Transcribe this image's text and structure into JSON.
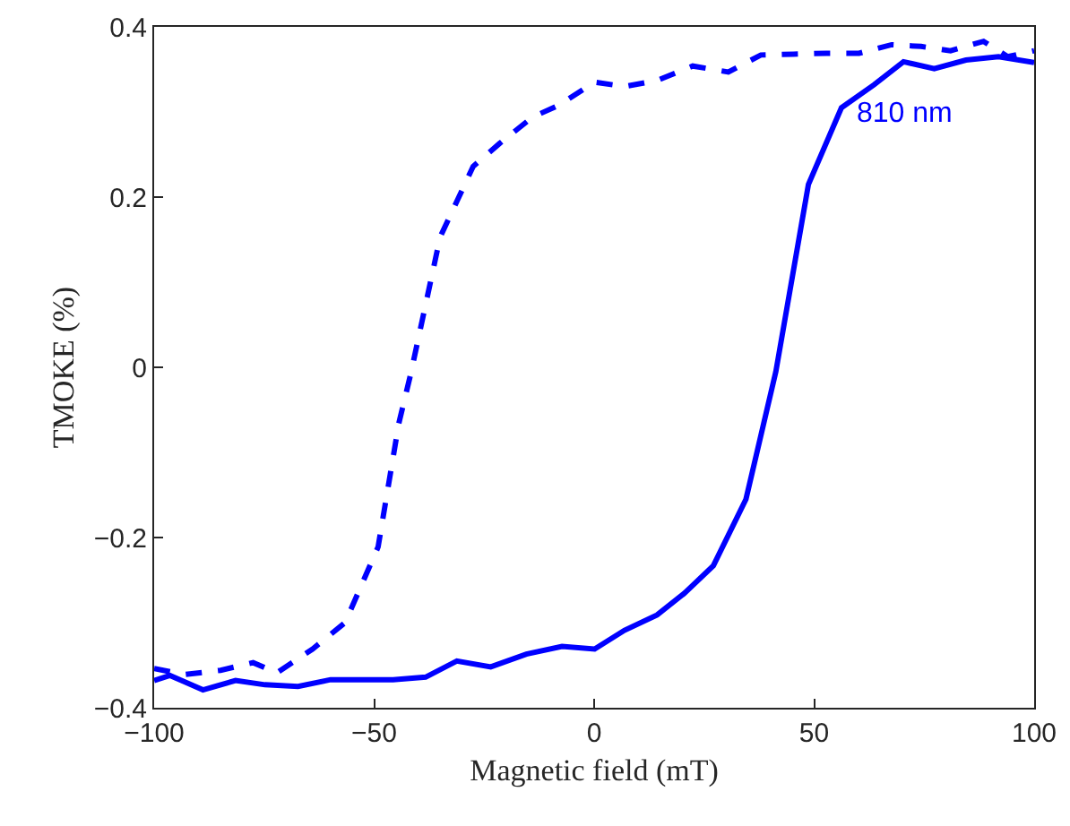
{
  "chart_data": {
    "type": "line",
    "xlabel": "Magnetic field (mT)",
    "ylabel": "TMOKE (%)",
    "xlim": [
      -100,
      100
    ],
    "xticks": [
      -100,
      -50,
      0,
      50,
      100
    ],
    "ylim": [
      -0.4,
      0.4
    ],
    "yticks": [
      -0.4,
      -0.2,
      0,
      0.2,
      0.4
    ],
    "annotations": [
      "810 nm"
    ],
    "series": [
      {
        "color": "#0000ff",
        "line_style": "solid",
        "x": [
          -100,
          -96.4,
          -88.9,
          -81.5,
          -74.8,
          -67.3,
          -59.9,
          -53.2,
          -45.7,
          -38.3,
          -31.2,
          -23.5,
          -15.4,
          -7.3,
          0.1,
          6.9,
          14.3,
          20.4,
          27.1,
          34.5,
          41.3,
          48.7,
          56.2,
          63.6,
          70.3,
          77.3,
          84.5,
          91.9,
          100
        ],
        "values": [
          -0.368,
          -0.362,
          -0.379,
          -0.368,
          -0.373,
          -0.375,
          -0.367,
          -0.367,
          -0.367,
          -0.364,
          -0.345,
          -0.352,
          -0.337,
          -0.328,
          -0.331,
          -0.309,
          -0.291,
          -0.266,
          -0.233,
          -0.155,
          -0.005,
          0.215,
          0.305,
          0.332,
          0.359,
          0.351,
          0.361,
          0.365,
          0.358
        ]
      },
      {
        "color": "#0000ff",
        "line_style": "dashed",
        "x": [
          -100,
          -93,
          -84.9,
          -77.5,
          -72.1,
          -64,
          -56.6,
          -49.1,
          -44.4,
          -41.7,
          -35,
          -27.5,
          -21.5,
          -14,
          -8,
          0.1,
          6.9,
          14.3,
          22.4,
          30.5,
          37.9,
          45.3,
          52.8,
          60.2,
          67.6,
          74.3,
          81,
          88.5,
          94,
          100
        ],
        "values": [
          -0.354,
          -0.361,
          -0.356,
          -0.347,
          -0.359,
          -0.331,
          -0.3,
          -0.211,
          -0.066,
          -0.008,
          0.153,
          0.236,
          0.263,
          0.294,
          0.308,
          0.335,
          0.33,
          0.337,
          0.354,
          0.347,
          0.367,
          0.368,
          0.369,
          0.369,
          0.379,
          0.377,
          0.372,
          0.383,
          0.365,
          0.372
        ]
      }
    ]
  }
}
